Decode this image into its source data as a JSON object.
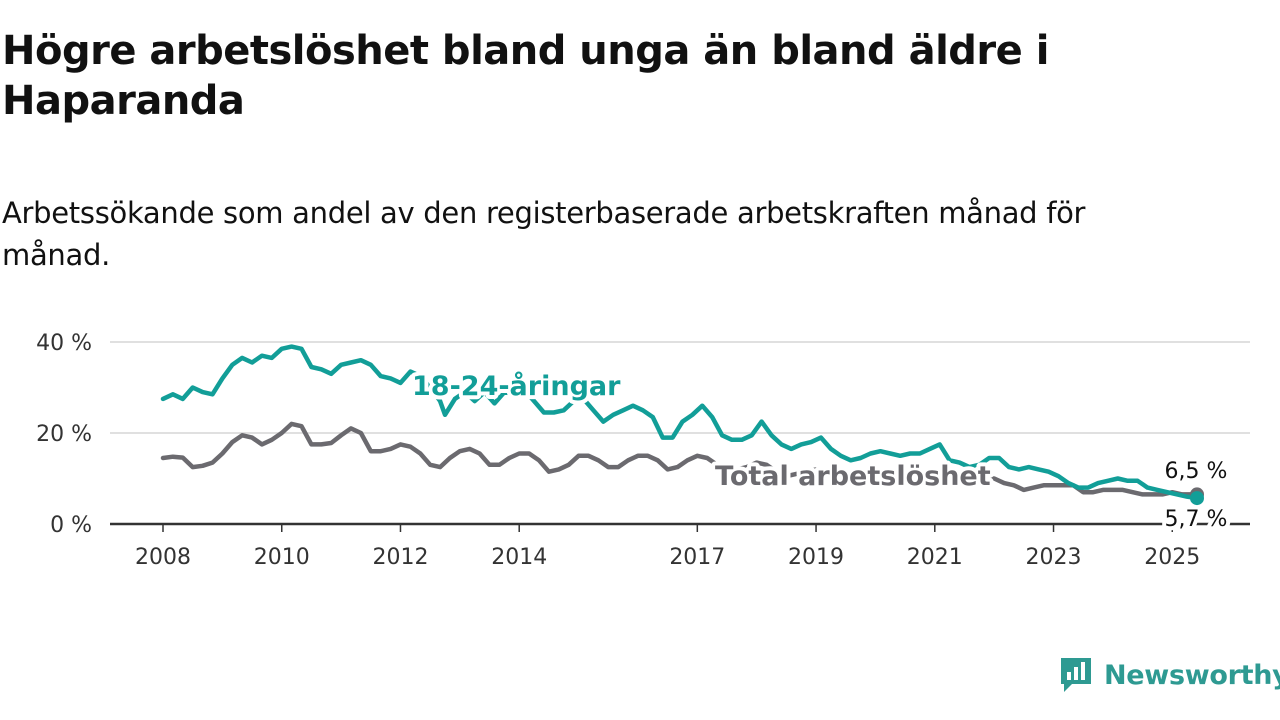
{
  "title": "Högre arbetslöshet bland unga än bland äldre i Haparanda",
  "subtitle": "Arbetssökande som andel av den registerbaserade arbetskraften månad för månad.",
  "brand": {
    "name": "Newsworthy",
    "color": "#2e9a92"
  },
  "chart_data": {
    "type": "line",
    "x_ticks": [
      "2008",
      "2010",
      "2012",
      "2014",
      "2017",
      "2019",
      "2021",
      "2023",
      "2025"
    ],
    "y_ticks": [
      "0 %",
      "20 %",
      "40 %"
    ],
    "y_tick_values": [
      0,
      20,
      40
    ],
    "ylim": [
      0,
      40
    ],
    "x_range": [
      "2008-01",
      "2025-06"
    ],
    "grid": true,
    "series": [
      {
        "name": "18-24-åringar",
        "color": "#129e98",
        "end_label": "5,7 %",
        "points": [
          [
            "2008-01",
            27.5
          ],
          [
            "2008-03",
            28.5
          ],
          [
            "2008-05",
            27.5
          ],
          [
            "2008-07",
            30
          ],
          [
            "2008-09",
            29
          ],
          [
            "2008-11",
            28.5
          ],
          [
            "2009-01",
            32
          ],
          [
            "2009-03",
            35
          ],
          [
            "2009-05",
            36.5
          ],
          [
            "2009-07",
            35.5
          ],
          [
            "2009-09",
            37
          ],
          [
            "2009-11",
            36.5
          ],
          [
            "2010-01",
            38.5
          ],
          [
            "2010-03",
            39
          ],
          [
            "2010-05",
            38.5
          ],
          [
            "2010-07",
            34.5
          ],
          [
            "2010-09",
            34
          ],
          [
            "2010-11",
            33
          ],
          [
            "2011-01",
            35
          ],
          [
            "2011-03",
            35.5
          ],
          [
            "2011-05",
            36
          ],
          [
            "2011-07",
            35
          ],
          [
            "2011-09",
            32.5
          ],
          [
            "2011-11",
            32
          ],
          [
            "2012-01",
            31
          ],
          [
            "2012-03",
            33.5
          ],
          [
            "2012-05",
            32.5
          ],
          [
            "2012-07",
            30
          ],
          [
            "2012-09",
            27
          ],
          [
            "2012-10",
            24
          ],
          [
            "2012-12",
            27.5
          ],
          [
            "2013-02",
            29
          ],
          [
            "2013-04",
            27
          ],
          [
            "2013-06",
            29
          ],
          [
            "2013-08",
            26.5
          ],
          [
            "2013-10",
            29
          ],
          [
            "2013-12",
            28.5
          ],
          [
            "2014-02",
            29.5
          ],
          [
            "2014-04",
            27
          ],
          [
            "2014-06",
            24.5
          ],
          [
            "2014-08",
            24.5
          ],
          [
            "2014-10",
            25
          ],
          [
            "2014-12",
            27
          ],
          [
            "2015-02",
            27.5
          ],
          [
            "2015-04",
            25
          ],
          [
            "2015-06",
            22.5
          ],
          [
            "2015-08",
            24
          ],
          [
            "2015-10",
            25
          ],
          [
            "2015-12",
            26
          ],
          [
            "2016-02",
            25
          ],
          [
            "2016-04",
            23.5
          ],
          [
            "2016-06",
            19
          ],
          [
            "2016-08",
            19
          ],
          [
            "2016-10",
            22.5
          ],
          [
            "2016-12",
            24
          ],
          [
            "2017-02",
            26
          ],
          [
            "2017-04",
            23.5
          ],
          [
            "2017-06",
            19.5
          ],
          [
            "2017-08",
            18.5
          ],
          [
            "2017-10",
            18.5
          ],
          [
            "2017-12",
            19.5
          ],
          [
            "2018-02",
            22.5
          ],
          [
            "2018-04",
            19.5
          ],
          [
            "2018-06",
            17.5
          ],
          [
            "2018-08",
            16.5
          ],
          [
            "2018-10",
            17.5
          ],
          [
            "2018-12",
            18
          ],
          [
            "2019-02",
            19
          ],
          [
            "2019-04",
            16.5
          ],
          [
            "2019-06",
            15
          ],
          [
            "2019-08",
            14
          ],
          [
            "2019-10",
            14.5
          ],
          [
            "2019-12",
            15.5
          ],
          [
            "2020-02",
            16
          ],
          [
            "2020-04",
            15.5
          ],
          [
            "2020-06",
            15
          ],
          [
            "2020-08",
            15.5
          ],
          [
            "2020-10",
            15.5
          ],
          [
            "2020-12",
            16.5
          ],
          [
            "2021-02",
            17.5
          ],
          [
            "2021-04",
            14
          ],
          [
            "2021-06",
            13.5
          ],
          [
            "2021-08",
            12.5
          ],
          [
            "2021-10",
            13
          ],
          [
            "2021-12",
            14.5
          ],
          [
            "2022-02",
            14.5
          ],
          [
            "2022-04",
            12.5
          ],
          [
            "2022-06",
            12
          ],
          [
            "2022-08",
            12.5
          ],
          [
            "2022-10",
            12
          ],
          [
            "2022-12",
            11.5
          ],
          [
            "2023-02",
            10.5
          ],
          [
            "2023-04",
            9
          ],
          [
            "2023-06",
            8
          ],
          [
            "2023-08",
            8
          ],
          [
            "2023-10",
            9
          ],
          [
            "2023-12",
            9.5
          ],
          [
            "2024-02",
            10
          ],
          [
            "2024-04",
            9.5
          ],
          [
            "2024-06",
            9.5
          ],
          [
            "2024-08",
            8
          ],
          [
            "2024-10",
            7.5
          ],
          [
            "2024-12",
            7
          ],
          [
            "2025-02",
            6.5
          ],
          [
            "2025-04",
            6
          ],
          [
            "2025-06",
            5.7
          ]
        ]
      },
      {
        "name": "Total arbetslöshet",
        "color": "#6b6a6f",
        "end_label": "6,5 %",
        "points": [
          [
            "2008-01",
            14.5
          ],
          [
            "2008-03",
            14.8
          ],
          [
            "2008-05",
            14.6
          ],
          [
            "2008-07",
            12.5
          ],
          [
            "2008-09",
            12.8
          ],
          [
            "2008-11",
            13.5
          ],
          [
            "2009-01",
            15.5
          ],
          [
            "2009-03",
            18
          ],
          [
            "2009-05",
            19.5
          ],
          [
            "2009-07",
            19
          ],
          [
            "2009-09",
            17.5
          ],
          [
            "2009-11",
            18.5
          ],
          [
            "2010-01",
            20
          ],
          [
            "2010-03",
            22
          ],
          [
            "2010-05",
            21.5
          ],
          [
            "2010-07",
            17.5
          ],
          [
            "2010-09",
            17.5
          ],
          [
            "2010-11",
            17.8
          ],
          [
            "2011-01",
            19.5
          ],
          [
            "2011-03",
            21
          ],
          [
            "2011-05",
            20
          ],
          [
            "2011-07",
            16
          ],
          [
            "2011-09",
            16
          ],
          [
            "2011-11",
            16.5
          ],
          [
            "2012-01",
            17.5
          ],
          [
            "2012-03",
            17
          ],
          [
            "2012-05",
            15.5
          ],
          [
            "2012-07",
            13
          ],
          [
            "2012-09",
            12.5
          ],
          [
            "2012-11",
            14.5
          ],
          [
            "2013-01",
            16
          ],
          [
            "2013-03",
            16.5
          ],
          [
            "2013-05",
            15.5
          ],
          [
            "2013-07",
            13
          ],
          [
            "2013-09",
            13
          ],
          [
            "2013-11",
            14.5
          ],
          [
            "2014-01",
            15.5
          ],
          [
            "2014-03",
            15.5
          ],
          [
            "2014-05",
            14
          ],
          [
            "2014-07",
            11.5
          ],
          [
            "2014-09",
            12
          ],
          [
            "2014-11",
            13
          ],
          [
            "2015-01",
            15
          ],
          [
            "2015-03",
            15
          ],
          [
            "2015-05",
            14
          ],
          [
            "2015-07",
            12.5
          ],
          [
            "2015-09",
            12.5
          ],
          [
            "2015-11",
            14
          ],
          [
            "2016-01",
            15
          ],
          [
            "2016-03",
            15
          ],
          [
            "2016-05",
            14
          ],
          [
            "2016-07",
            12
          ],
          [
            "2016-09",
            12.5
          ],
          [
            "2016-11",
            14
          ],
          [
            "2017-01",
            15
          ],
          [
            "2017-03",
            14.5
          ],
          [
            "2017-05",
            13
          ],
          [
            "2017-07",
            11.5
          ],
          [
            "2017-09",
            12
          ],
          [
            "2017-11",
            12.5
          ],
          [
            "2018-01",
            13.5
          ],
          [
            "2018-03",
            13
          ],
          [
            "2018-05",
            11.5
          ],
          [
            "2018-07",
            10.5
          ],
          [
            "2018-09",
            11
          ],
          [
            "2018-11",
            11.5
          ],
          [
            "2019-01",
            12
          ],
          [
            "2019-03",
            11.5
          ],
          [
            "2019-05",
            10.5
          ],
          [
            "2019-07",
            9.5
          ],
          [
            "2019-09",
            10
          ],
          [
            "2019-11",
            10.5
          ],
          [
            "2020-01",
            11
          ],
          [
            "2020-03",
            11
          ],
          [
            "2020-05",
            11
          ],
          [
            "2020-07",
            10
          ],
          [
            "2020-09",
            10
          ],
          [
            "2020-11",
            10.5
          ],
          [
            "2021-01",
            11
          ],
          [
            "2021-03",
            10.5
          ],
          [
            "2021-05",
            10
          ],
          [
            "2021-07",
            9.5
          ],
          [
            "2021-09",
            9.5
          ],
          [
            "2021-11",
            10
          ],
          [
            "2022-01",
            10
          ],
          [
            "2022-03",
            9
          ],
          [
            "2022-05",
            8.5
          ],
          [
            "2022-07",
            7.5
          ],
          [
            "2022-09",
            8
          ],
          [
            "2022-11",
            8.5
          ],
          [
            "2023-01",
            8.5
          ],
          [
            "2023-03",
            8.5
          ],
          [
            "2023-05",
            8.5
          ],
          [
            "2023-07",
            7
          ],
          [
            "2023-09",
            7
          ],
          [
            "2023-11",
            7.5
          ],
          [
            "2024-01",
            7.5
          ],
          [
            "2024-03",
            7.5
          ],
          [
            "2024-05",
            7
          ],
          [
            "2024-07",
            6.5
          ],
          [
            "2024-09",
            6.5
          ],
          [
            "2024-11",
            6.5
          ],
          [
            "2025-01",
            7
          ],
          [
            "2025-03",
            6.5
          ],
          [
            "2025-06",
            6.5
          ]
        ]
      }
    ]
  }
}
